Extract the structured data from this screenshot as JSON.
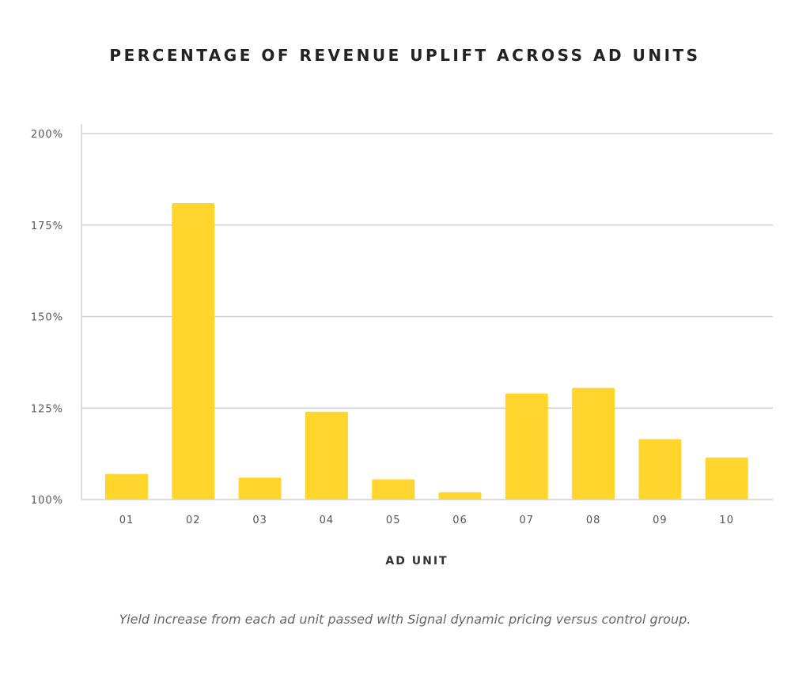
{
  "chart_data": {
    "type": "bar",
    "title": "PERCENTAGE OF REVENUE UPLIFT ACROSS AD UNITS",
    "xlabel": "AD UNIT",
    "ylabel": "",
    "categories": [
      "01",
      "02",
      "03",
      "04",
      "05",
      "06",
      "07",
      "08",
      "09",
      "10"
    ],
    "values": [
      107,
      181,
      106,
      124,
      105.5,
      102,
      129,
      130.5,
      116.5,
      111.5
    ],
    "ylim": [
      100,
      200
    ],
    "yticks": [
      100,
      125,
      150,
      175,
      200
    ],
    "ytick_labels": [
      "100%",
      "125%",
      "150%",
      "175%",
      "200%"
    ],
    "grid": true,
    "bar_color": "#FFD52E",
    "grid_color": "#D0D0D0"
  },
  "caption": "Yield increase from each ad unit passed with Signal dynamic pricing versus control group."
}
